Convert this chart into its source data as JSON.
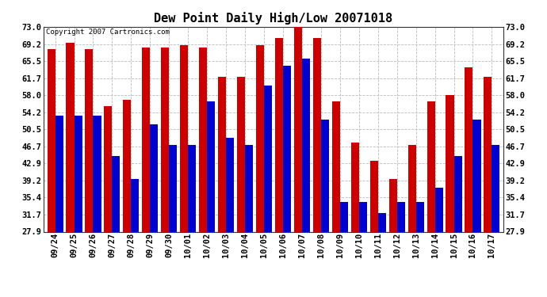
{
  "title": "Dew Point Daily High/Low 20071018",
  "copyright": "Copyright 2007 Cartronics.com",
  "dates": [
    "09/24",
    "09/25",
    "09/26",
    "09/27",
    "09/28",
    "09/29",
    "09/30",
    "10/01",
    "10/02",
    "10/03",
    "10/04",
    "10/05",
    "10/06",
    "10/07",
    "10/08",
    "10/09",
    "10/10",
    "10/11",
    "10/12",
    "10/13",
    "10/14",
    "10/15",
    "10/16",
    "10/17"
  ],
  "highs": [
    68.0,
    69.5,
    68.0,
    55.5,
    57.0,
    68.5,
    68.5,
    69.0,
    68.5,
    62.0,
    62.0,
    69.0,
    70.5,
    73.0,
    70.5,
    56.5,
    47.5,
    43.5,
    39.5,
    47.0,
    56.5,
    58.0,
    64.0,
    62.0
  ],
  "lows": [
    53.5,
    53.5,
    53.5,
    44.5,
    39.5,
    51.5,
    47.0,
    47.0,
    56.5,
    48.5,
    47.0,
    60.0,
    64.5,
    66.0,
    52.5,
    34.5,
    34.5,
    32.0,
    34.5,
    34.5,
    37.5,
    44.5,
    52.5,
    47.0
  ],
  "high_color": "#cc0000",
  "low_color": "#0000cc",
  "ymin": 27.9,
  "ymax": 73.0,
  "yticks": [
    27.9,
    31.7,
    35.4,
    39.2,
    42.9,
    46.7,
    50.5,
    54.2,
    58.0,
    61.7,
    65.5,
    69.2,
    73.0
  ],
  "bg_color": "#ffffff",
  "grid_color": "#bbbbbb",
  "title_fontsize": 11,
  "tick_fontsize": 7.5,
  "copyright_fontsize": 6.5
}
